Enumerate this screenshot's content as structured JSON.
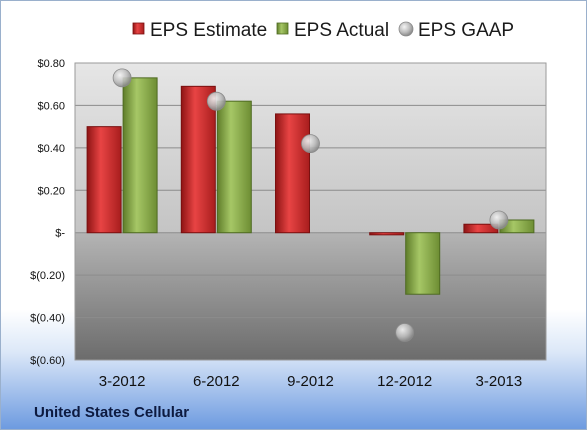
{
  "chart_data": {
    "type": "bar",
    "categories": [
      "3-2012",
      "6-2012",
      "9-2012",
      "12-2012",
      "3-2013"
    ],
    "series": [
      {
        "name": "EPS Estimate",
        "values": [
          0.5,
          0.69,
          0.56,
          -0.01,
          0.04
        ],
        "color": "#cc2a2a"
      },
      {
        "name": "EPS Actual",
        "values": [
          0.73,
          0.62,
          null,
          -0.29,
          0.06
        ],
        "color": "#8aae4a"
      },
      {
        "name": "EPS GAAP",
        "values": [
          0.73,
          0.62,
          0.42,
          -0.47,
          0.06
        ],
        "color": "#b8b8b8",
        "marker": "circle"
      }
    ],
    "ylim": [
      -0.6,
      0.8
    ],
    "yticks": [
      0.8,
      0.6,
      0.4,
      0.2,
      0,
      -0.2,
      -0.4,
      -0.6
    ],
    "ytick_labels": [
      "$0.80",
      "$0.60",
      "$0.40",
      "$0.20",
      "$-",
      "$(0.20)",
      "$(0.40)",
      "$(0.60)"
    ],
    "legend_position": "top",
    "grid": true,
    "footer": "United States Cellular"
  }
}
